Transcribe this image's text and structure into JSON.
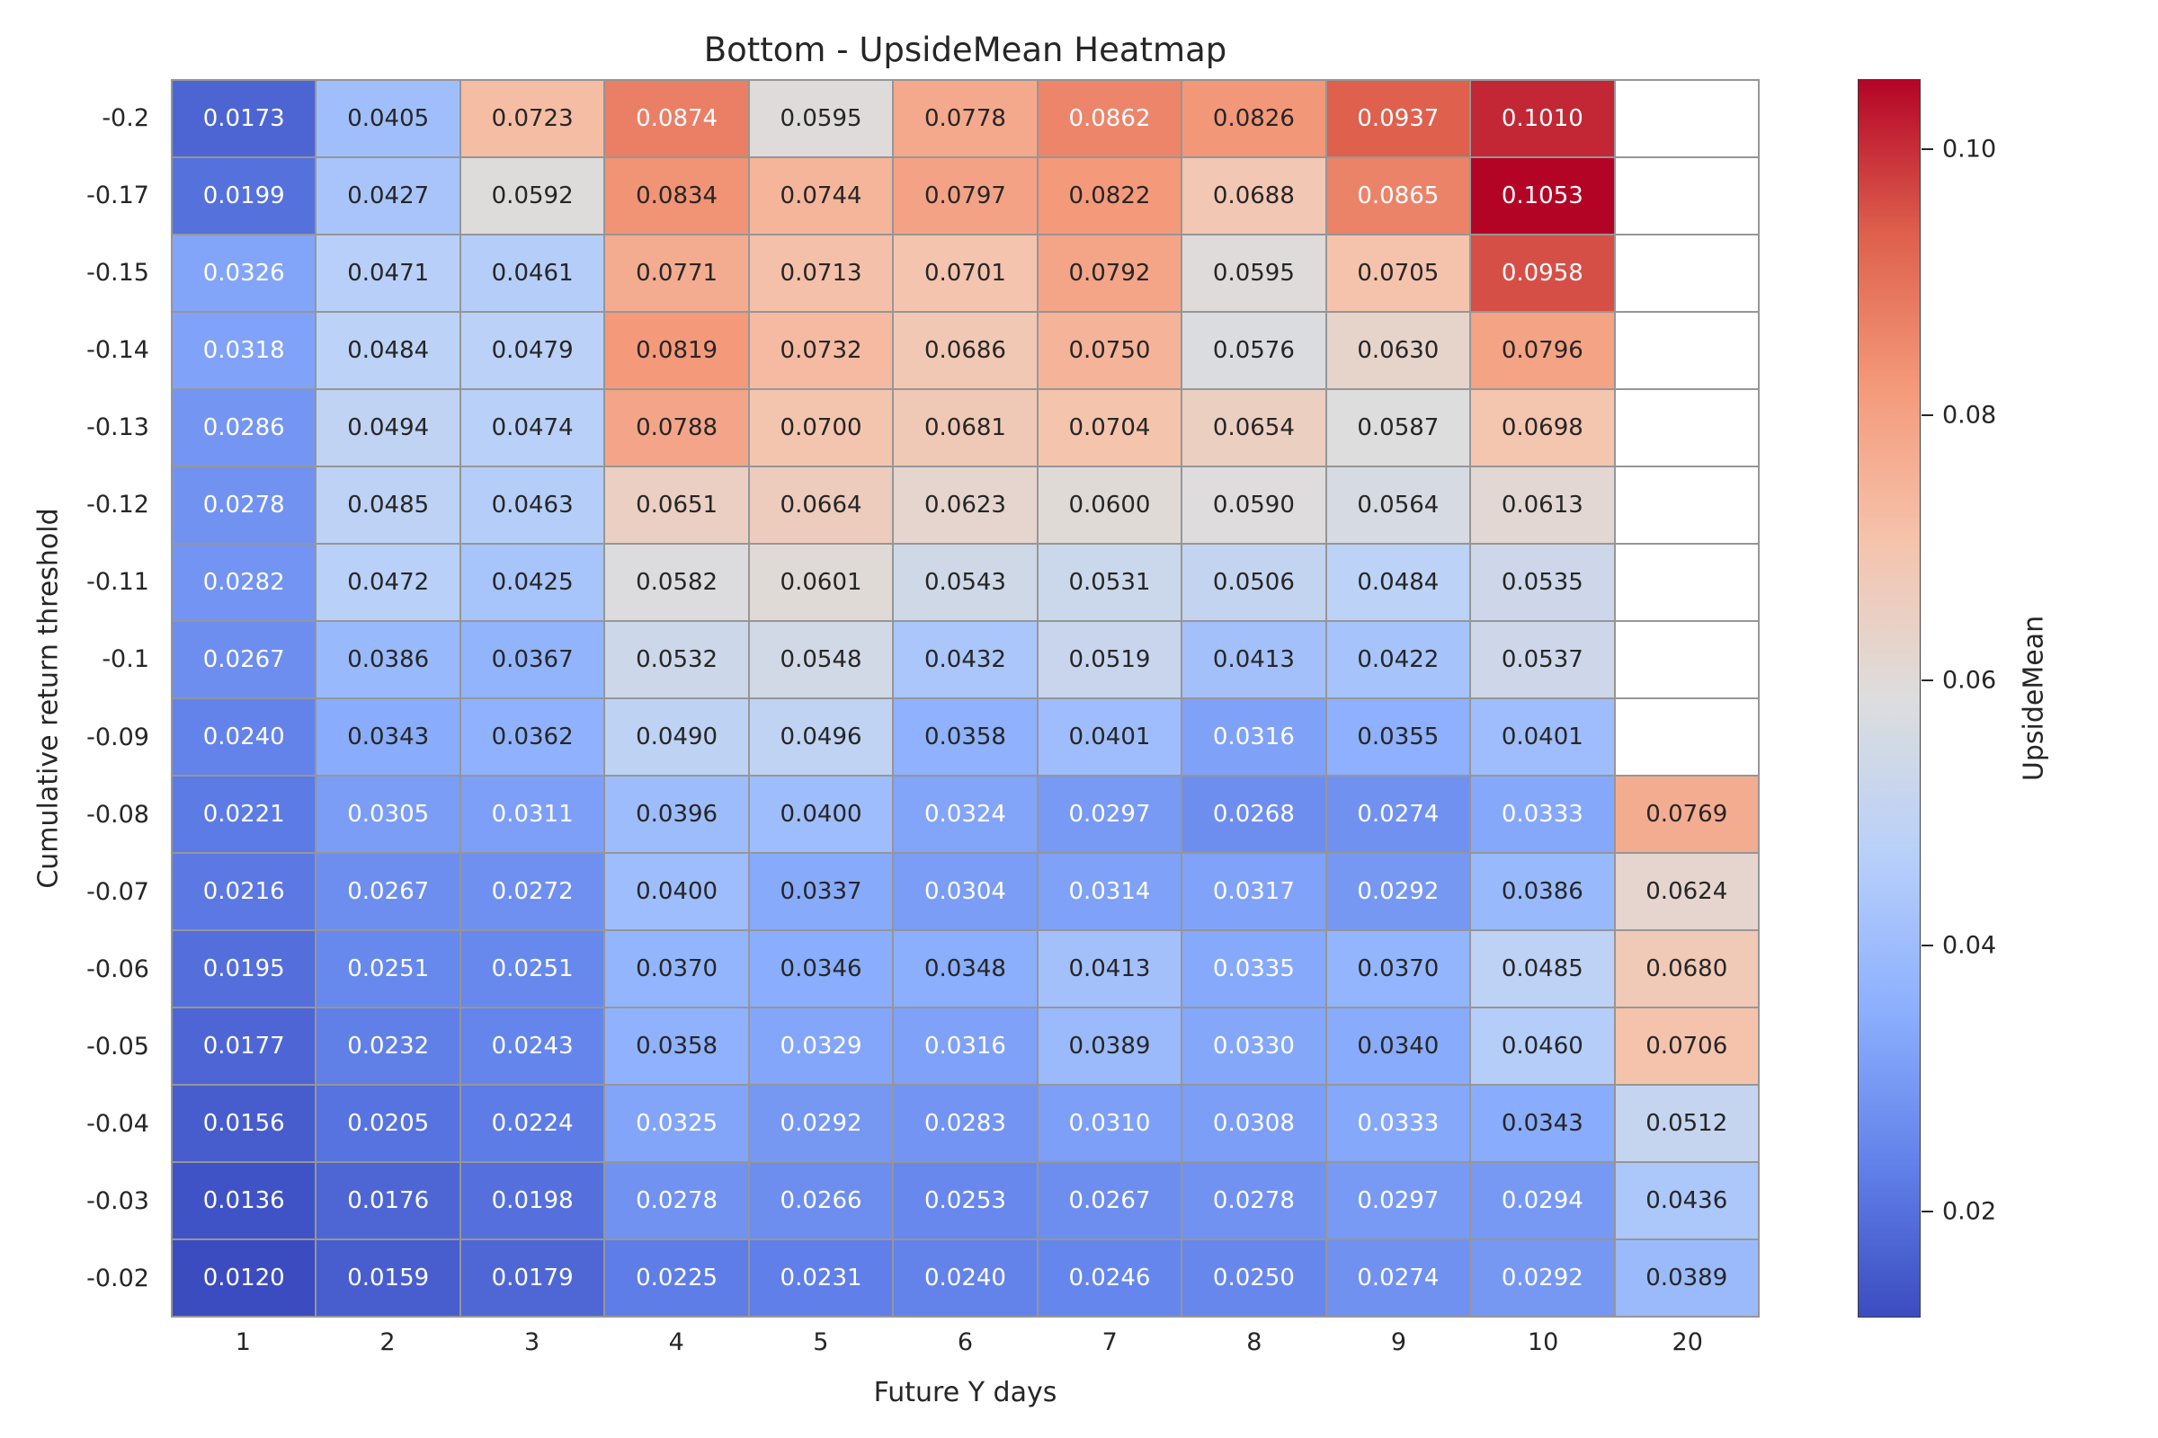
{
  "chart_data": {
    "type": "heatmap",
    "title": "Bottom - UpsideMean Heatmap",
    "xlabel": "Future Y days",
    "ylabel": "Cumulative return threshold",
    "x_categories": [
      "1",
      "2",
      "3",
      "4",
      "5",
      "6",
      "7",
      "8",
      "9",
      "10",
      "20"
    ],
    "y_categories": [
      "-0.2",
      "-0.17",
      "-0.15",
      "-0.14",
      "-0.13",
      "-0.12",
      "-0.11",
      "-0.1",
      "-0.09",
      "-0.08",
      "-0.07",
      "-0.06",
      "-0.05",
      "-0.04",
      "-0.03",
      "-0.02"
    ],
    "values": [
      [
        0.0173,
        0.0405,
        0.0723,
        0.0874,
        0.0595,
        0.0778,
        0.0862,
        0.0826,
        0.0937,
        0.101,
        null
      ],
      [
        0.0199,
        0.0427,
        0.0592,
        0.0834,
        0.0744,
        0.0797,
        0.0822,
        0.0688,
        0.0865,
        0.1053,
        null
      ],
      [
        0.0326,
        0.0471,
        0.0461,
        0.0771,
        0.0713,
        0.0701,
        0.0792,
        0.0595,
        0.0705,
        0.0958,
        null
      ],
      [
        0.0318,
        0.0484,
        0.0479,
        0.0819,
        0.0732,
        0.0686,
        0.075,
        0.0576,
        0.063,
        0.0796,
        null
      ],
      [
        0.0286,
        0.0494,
        0.0474,
        0.0788,
        0.07,
        0.0681,
        0.0704,
        0.0654,
        0.0587,
        0.0698,
        null
      ],
      [
        0.0278,
        0.0485,
        0.0463,
        0.0651,
        0.0664,
        0.0623,
        0.06,
        0.059,
        0.0564,
        0.0613,
        null
      ],
      [
        0.0282,
        0.0472,
        0.0425,
        0.0582,
        0.0601,
        0.0543,
        0.0531,
        0.0506,
        0.0484,
        0.0535,
        null
      ],
      [
        0.0267,
        0.0386,
        0.0367,
        0.0532,
        0.0548,
        0.0432,
        0.0519,
        0.0413,
        0.0422,
        0.0537,
        null
      ],
      [
        0.024,
        0.0343,
        0.0362,
        0.049,
        0.0496,
        0.0358,
        0.0401,
        0.0316,
        0.0355,
        0.0401,
        null
      ],
      [
        0.0221,
        0.0305,
        0.0311,
        0.0396,
        0.04,
        0.0324,
        0.0297,
        0.0268,
        0.0274,
        0.0333,
        0.0769
      ],
      [
        0.0216,
        0.0267,
        0.0272,
        0.04,
        0.0337,
        0.0304,
        0.0314,
        0.0317,
        0.0292,
        0.0386,
        0.0624
      ],
      [
        0.0195,
        0.0251,
        0.0251,
        0.037,
        0.0346,
        0.0348,
        0.0413,
        0.0335,
        0.037,
        0.0485,
        0.068
      ],
      [
        0.0177,
        0.0232,
        0.0243,
        0.0358,
        0.0329,
        0.0316,
        0.0389,
        0.033,
        0.034,
        0.046,
        0.0706
      ],
      [
        0.0156,
        0.0205,
        0.0224,
        0.0325,
        0.0292,
        0.0283,
        0.031,
        0.0308,
        0.0333,
        0.0343,
        0.0512
      ],
      [
        0.0136,
        0.0176,
        0.0198,
        0.0278,
        0.0266,
        0.0253,
        0.0267,
        0.0278,
        0.0297,
        0.0294,
        0.0436
      ],
      [
        0.012,
        0.0159,
        0.0179,
        0.0225,
        0.0231,
        0.024,
        0.0246,
        0.025,
        0.0274,
        0.0292,
        0.0389
      ]
    ],
    "value_format": ".4f",
    "colormap": "coolwarm",
    "vmin": 0.012,
    "vmax": 0.1053,
    "colorbar": {
      "label": "UpsideMean",
      "ticks": [
        0.02,
        0.04,
        0.06,
        0.08,
        0.1
      ]
    },
    "style": {
      "cell_line_color": "#969696",
      "background": "#ffffff",
      "empty_cell_color": "#ffffff",
      "dark_text_color": "#262626",
      "light_text_color": "#ffffff"
    }
  }
}
